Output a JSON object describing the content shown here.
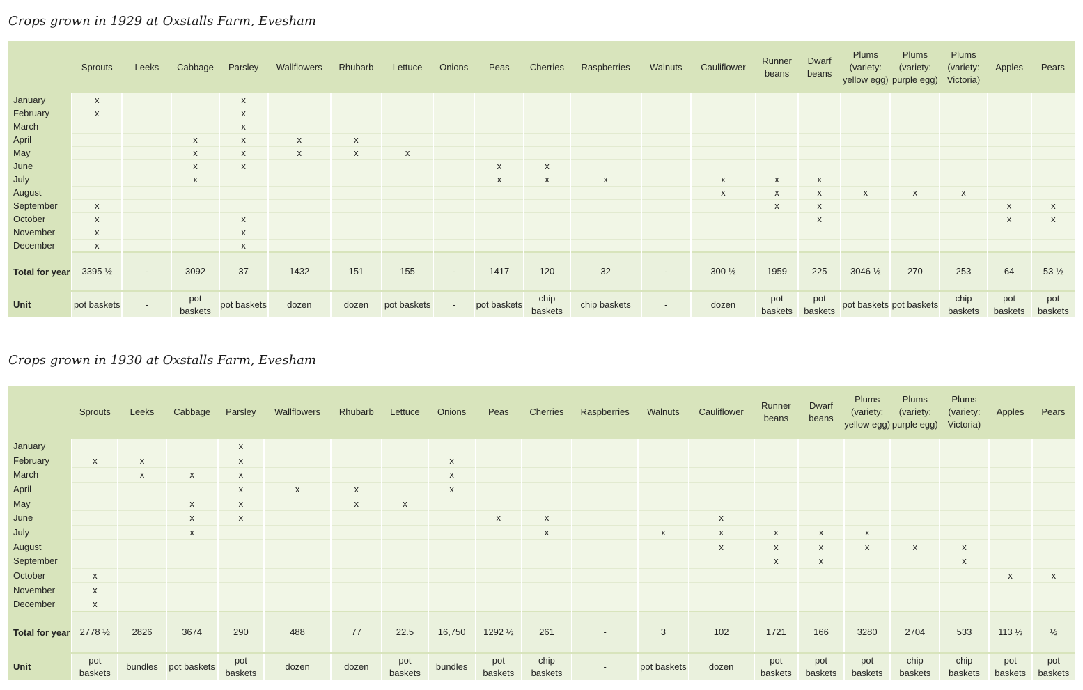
{
  "crops": [
    "Sprouts",
    "Leeks",
    "Cabbage",
    "Parsley",
    "Wallflowers",
    "Rhubarb",
    "Lettuce",
    "Onions",
    "Peas",
    "Cherries",
    "Raspberries",
    "Walnuts",
    "Cauliflower",
    "Runner beans",
    "Dwarf beans",
    "Plums (variety: yellow egg)",
    "Plums (variety: purple egg)",
    "Plums (variety: Victoria)",
    "Apples",
    "Pears"
  ],
  "months": [
    "January",
    "February",
    "March",
    "April",
    "May",
    "June",
    "July",
    "August",
    "September",
    "October",
    "November",
    "December"
  ],
  "row_labels": {
    "total": "Total for year",
    "unit": "Unit"
  },
  "tables": [
    {
      "title": "Crops grown in 1929 at Oxstalls Farm, Evesham",
      "grid": [
        [
          "x",
          "",
          "",
          "x",
          "",
          "",
          "",
          "",
          "",
          "",
          "",
          "",
          "",
          "",
          "",
          "",
          "",
          "",
          "",
          ""
        ],
        [
          "x",
          "",
          "",
          "x",
          "",
          "",
          "",
          "",
          "",
          "",
          "",
          "",
          "",
          "",
          "",
          "",
          "",
          "",
          "",
          ""
        ],
        [
          "",
          "",
          "",
          "x",
          "",
          "",
          "",
          "",
          "",
          "",
          "",
          "",
          "",
          "",
          "",
          "",
          "",
          "",
          "",
          ""
        ],
        [
          "",
          "",
          "x",
          "x",
          "x",
          "x",
          "",
          "",
          "",
          "",
          "",
          "",
          "",
          "",
          "",
          "",
          "",
          "",
          "",
          ""
        ],
        [
          "",
          "",
          "x",
          "x",
          "x",
          "x",
          "x",
          "",
          "",
          "",
          "",
          "",
          "",
          "",
          "",
          "",
          "",
          "",
          "",
          ""
        ],
        [
          "",
          "",
          "x",
          "x",
          "",
          "",
          "",
          "",
          "x",
          "x",
          "",
          "",
          "",
          "",
          "",
          "",
          "",
          "",
          "",
          ""
        ],
        [
          "",
          "",
          "x",
          "",
          "",
          "",
          "",
          "",
          "x",
          "x",
          "x",
          "",
          "x",
          "x",
          "x",
          "",
          "",
          "",
          "",
          ""
        ],
        [
          "",
          "",
          "",
          "",
          "",
          "",
          "",
          "",
          "",
          "",
          "",
          "",
          "x",
          "x",
          "x",
          "x",
          "x",
          "x",
          "",
          ""
        ],
        [
          "x",
          "",
          "",
          "",
          "",
          "",
          "",
          "",
          "",
          "",
          "",
          "",
          "",
          "x",
          "x",
          "",
          "",
          "",
          "x",
          "x"
        ],
        [
          "x",
          "",
          "",
          "x",
          "",
          "",
          "",
          "",
          "",
          "",
          "",
          "",
          "",
          "",
          "x",
          "",
          "",
          "",
          "x",
          "x"
        ],
        [
          "x",
          "",
          "",
          "x",
          "",
          "",
          "",
          "",
          "",
          "",
          "",
          "",
          "",
          "",
          "",
          "",
          "",
          "",
          "",
          ""
        ],
        [
          "x",
          "",
          "",
          "x",
          "",
          "",
          "",
          "",
          "",
          "",
          "",
          "",
          "",
          "",
          "",
          "",
          "",
          "",
          "",
          ""
        ]
      ],
      "totals": [
        "3395 ½",
        "-",
        "3092",
        "37",
        "1432",
        "151",
        "155",
        "-",
        "1417",
        "120",
        "32",
        "-",
        "300 ½",
        "1959",
        "225",
        "3046 ½",
        "270",
        "253",
        "64",
        "53 ½"
      ],
      "units": [
        "pot baskets",
        "-",
        "pot baskets",
        "pot baskets",
        "dozen",
        "dozen",
        "pot baskets",
        "-",
        "pot baskets",
        "chip baskets",
        "chip baskets",
        "-",
        "dozen",
        "pot baskets",
        "pot baskets",
        "pot baskets",
        "pot baskets",
        "chip baskets",
        "pot baskets",
        "pot baskets"
      ]
    },
    {
      "title": "Crops grown in 1930 at Oxstalls Farm, Evesham",
      "grid": [
        [
          "",
          "",
          "",
          "x",
          "",
          "",
          "",
          "",
          "",
          "",
          "",
          "",
          "",
          "",
          "",
          "",
          "",
          "",
          "",
          ""
        ],
        [
          "x",
          "x",
          "",
          "x",
          "",
          "",
          "",
          "x",
          "",
          "",
          "",
          "",
          "",
          "",
          "",
          "",
          "",
          "",
          "",
          ""
        ],
        [
          "",
          "x",
          "x",
          "x",
          "",
          "",
          "",
          "x",
          "",
          "",
          "",
          "",
          "",
          "",
          "",
          "",
          "",
          "",
          "",
          ""
        ],
        [
          "",
          "",
          "",
          "x",
          "x",
          "x",
          "",
          "x",
          "",
          "",
          "",
          "",
          "",
          "",
          "",
          "",
          "",
          "",
          "",
          ""
        ],
        [
          "",
          "",
          "x",
          "x",
          "",
          "x",
          "x",
          "",
          "",
          "",
          "",
          "",
          "",
          "",
          "",
          "",
          "",
          "",
          "",
          ""
        ],
        [
          "",
          "",
          "x",
          "x",
          "",
          "",
          "",
          "",
          "x",
          "x",
          "",
          "",
          "x",
          "",
          "",
          "",
          "",
          "",
          "",
          ""
        ],
        [
          "",
          "",
          "x",
          "",
          "",
          "",
          "",
          "",
          "",
          "x",
          "",
          "x",
          "x",
          "x",
          "x",
          "x",
          "",
          "",
          "",
          ""
        ],
        [
          "",
          "",
          "",
          "",
          "",
          "",
          "",
          "",
          "",
          "",
          "",
          "",
          "x",
          "x",
          "x",
          "x",
          "x",
          "x",
          "",
          ""
        ],
        [
          "",
          "",
          "",
          "",
          "",
          "",
          "",
          "",
          "",
          "",
          "",
          "",
          "",
          "x",
          "x",
          "",
          "",
          "x",
          "",
          ""
        ],
        [
          "x",
          "",
          "",
          "",
          "",
          "",
          "",
          "",
          "",
          "",
          "",
          "",
          "",
          "",
          "",
          "",
          "",
          "",
          "x",
          "x"
        ],
        [
          "x",
          "",
          "",
          "",
          "",
          "",
          "",
          "",
          "",
          "",
          "",
          "",
          "",
          "",
          "",
          "",
          "",
          "",
          "",
          ""
        ],
        [
          "x",
          "",
          "",
          "",
          "",
          "",
          "",
          "",
          "",
          "",
          "",
          "",
          "",
          "",
          "",
          "",
          "",
          "",
          "",
          ""
        ]
      ],
      "totals": [
        "2778 ½",
        "2826",
        "3674",
        "290",
        "488",
        "77",
        "22.5",
        "16,750",
        "1292 ½",
        "261",
        "-",
        "3",
        "102",
        "1721",
        "166",
        "3280",
        "2704",
        "533",
        "113 ½",
        "½"
      ],
      "units": [
        "pot baskets",
        "bundles",
        "pot baskets",
        "pot baskets",
        "dozen",
        "dozen",
        "pot baskets",
        "bundles",
        "pot baskets",
        "chip baskets",
        "-",
        "pot baskets",
        "dozen",
        "pot baskets",
        "pot baskets",
        "pot baskets",
        "chip baskets",
        "chip baskets",
        "pot baskets",
        "pot baskets"
      ]
    }
  ]
}
